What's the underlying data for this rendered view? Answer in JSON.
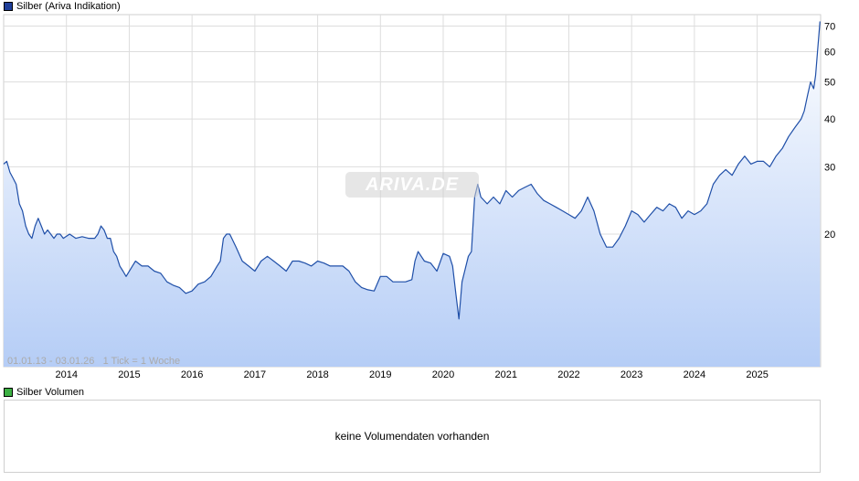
{
  "price_legend": {
    "label": "Silber (Ariva Indikation)",
    "color": "#1f3f99"
  },
  "volume_legend": {
    "label": "Silber Volumen",
    "color": "#3cb043"
  },
  "range_note": "01.01.13 - 03.01.26   1 Tick = 1 Woche",
  "watermark": "ARIVA.DE",
  "volume_message": "keine Volumendaten vorhanden",
  "chart_data": {
    "type": "area",
    "scale": "log",
    "grid": true,
    "ylim": [
      9,
      75
    ],
    "xlim": [
      2013.0,
      2026.01
    ],
    "y_ticks": [
      20,
      30,
      40,
      50,
      60,
      70
    ],
    "x_ticks": [
      2014,
      2015,
      2016,
      2017,
      2018,
      2019,
      2020,
      2021,
      2022,
      2023,
      2024,
      2025
    ],
    "series": [
      {
        "name": "Silber (Ariva Indikation)",
        "x": [
          2013.0,
          2013.05,
          2013.1,
          2013.15,
          2013.2,
          2013.25,
          2013.3,
          2013.35,
          2013.4,
          2013.45,
          2013.5,
          2013.55,
          2013.6,
          2013.65,
          2013.7,
          2013.75,
          2013.8,
          2013.85,
          2013.9,
          2013.95,
          2014.05,
          2014.15,
          2014.25,
          2014.35,
          2014.45,
          2014.5,
          2014.55,
          2014.6,
          2014.65,
          2014.7,
          2014.75,
          2014.8,
          2014.85,
          2014.9,
          2014.95,
          2015.05,
          2015.1,
          2015.2,
          2015.3,
          2015.4,
          2015.5,
          2015.6,
          2015.7,
          2015.8,
          2015.9,
          2016.0,
          2016.1,
          2016.2,
          2016.3,
          2016.4,
          2016.45,
          2016.5,
          2016.55,
          2016.6,
          2016.7,
          2016.8,
          2016.9,
          2017.0,
          2017.1,
          2017.2,
          2017.3,
          2017.4,
          2017.5,
          2017.6,
          2017.7,
          2017.8,
          2017.9,
          2018.0,
          2018.1,
          2018.2,
          2018.3,
          2018.4,
          2018.5,
          2018.6,
          2018.7,
          2018.8,
          2018.9,
          2019.0,
          2019.1,
          2019.2,
          2019.3,
          2019.4,
          2019.5,
          2019.55,
          2019.6,
          2019.7,
          2019.8,
          2019.9,
          2020.0,
          2020.1,
          2020.15,
          2020.2,
          2020.25,
          2020.3,
          2020.4,
          2020.45,
          2020.5,
          2020.55,
          2020.6,
          2020.7,
          2020.8,
          2020.9,
          2021.0,
          2021.1,
          2021.2,
          2021.3,
          2021.4,
          2021.5,
          2021.6,
          2021.7,
          2021.8,
          2021.9,
          2022.0,
          2022.1,
          2022.2,
          2022.3,
          2022.4,
          2022.5,
          2022.6,
          2022.7,
          2022.8,
          2022.9,
          2023.0,
          2023.1,
          2023.2,
          2023.3,
          2023.4,
          2023.5,
          2023.6,
          2023.7,
          2023.8,
          2023.9,
          2024.0,
          2024.1,
          2024.2,
          2024.3,
          2024.4,
          2024.5,
          2024.6,
          2024.7,
          2024.8,
          2024.9,
          2025.0,
          2025.1,
          2025.2,
          2025.3,
          2025.4,
          2025.5,
          2025.6,
          2025.7,
          2025.75,
          2025.8,
          2025.85,
          2025.9,
          2025.93,
          2025.96,
          2026.0
        ],
        "values": [
          30.5,
          31,
          29,
          28,
          27,
          24,
          23,
          21,
          20,
          19.5,
          21,
          22,
          21,
          20,
          20.5,
          20,
          19.5,
          20,
          20,
          19.5,
          20,
          19.5,
          19.7,
          19.5,
          19.5,
          20,
          21,
          20.5,
          19.5,
          19.5,
          18,
          17.5,
          16.5,
          16,
          15.5,
          16.5,
          17,
          16.5,
          16.5,
          16,
          15.8,
          15,
          14.7,
          14.5,
          14,
          14.2,
          14.8,
          15,
          15.5,
          16.5,
          17,
          19.5,
          20,
          20,
          18.5,
          17,
          16.5,
          16,
          17,
          17.5,
          17,
          16.5,
          16,
          17,
          17,
          16.8,
          16.5,
          17,
          16.8,
          16.5,
          16.5,
          16.5,
          16,
          15,
          14.5,
          14.3,
          14.2,
          15.5,
          15.5,
          15,
          15,
          15,
          15.2,
          17,
          18,
          17,
          16.8,
          16,
          17.8,
          17.5,
          16.5,
          14,
          12,
          15,
          17.5,
          18,
          25,
          27,
          25,
          24,
          25,
          24,
          26,
          25,
          26,
          26.5,
          27,
          25.5,
          24.5,
          24,
          23.5,
          23,
          22.5,
          22,
          23,
          25,
          23,
          20,
          18.5,
          18.5,
          19.5,
          21,
          23,
          22.5,
          21.5,
          22.5,
          23.5,
          23,
          24,
          23.5,
          22,
          23,
          22.5,
          23,
          24,
          27,
          28.5,
          29.5,
          28.5,
          30.5,
          32,
          30.5,
          31,
          31,
          30,
          32,
          33.5,
          36,
          38,
          40,
          42,
          46,
          50,
          48,
          52,
          60,
          72
        ]
      }
    ]
  }
}
